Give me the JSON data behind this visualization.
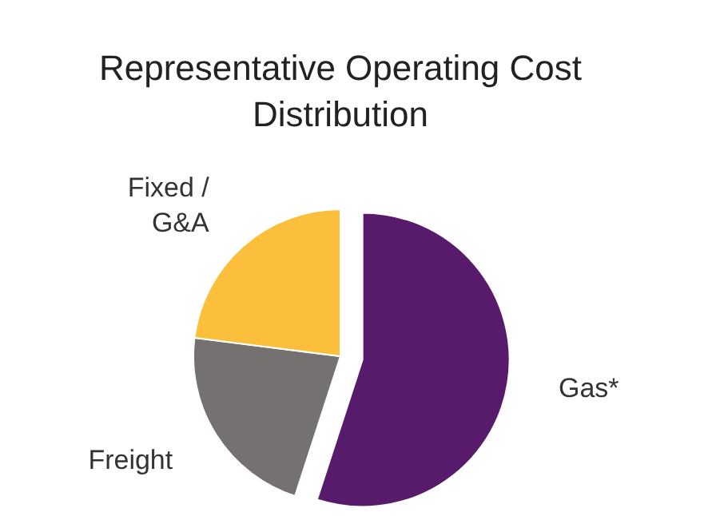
{
  "chart_data": {
    "type": "pie",
    "title": "Representative Operating Cost Distribution",
    "categories": [
      "Gas*",
      "Freight",
      "Fixed / G&A"
    ],
    "values": [
      55,
      22,
      23
    ],
    "colors": [
      "#581a6b",
      "#767171",
      "#fbbf3b"
    ],
    "legend": false
  }
}
